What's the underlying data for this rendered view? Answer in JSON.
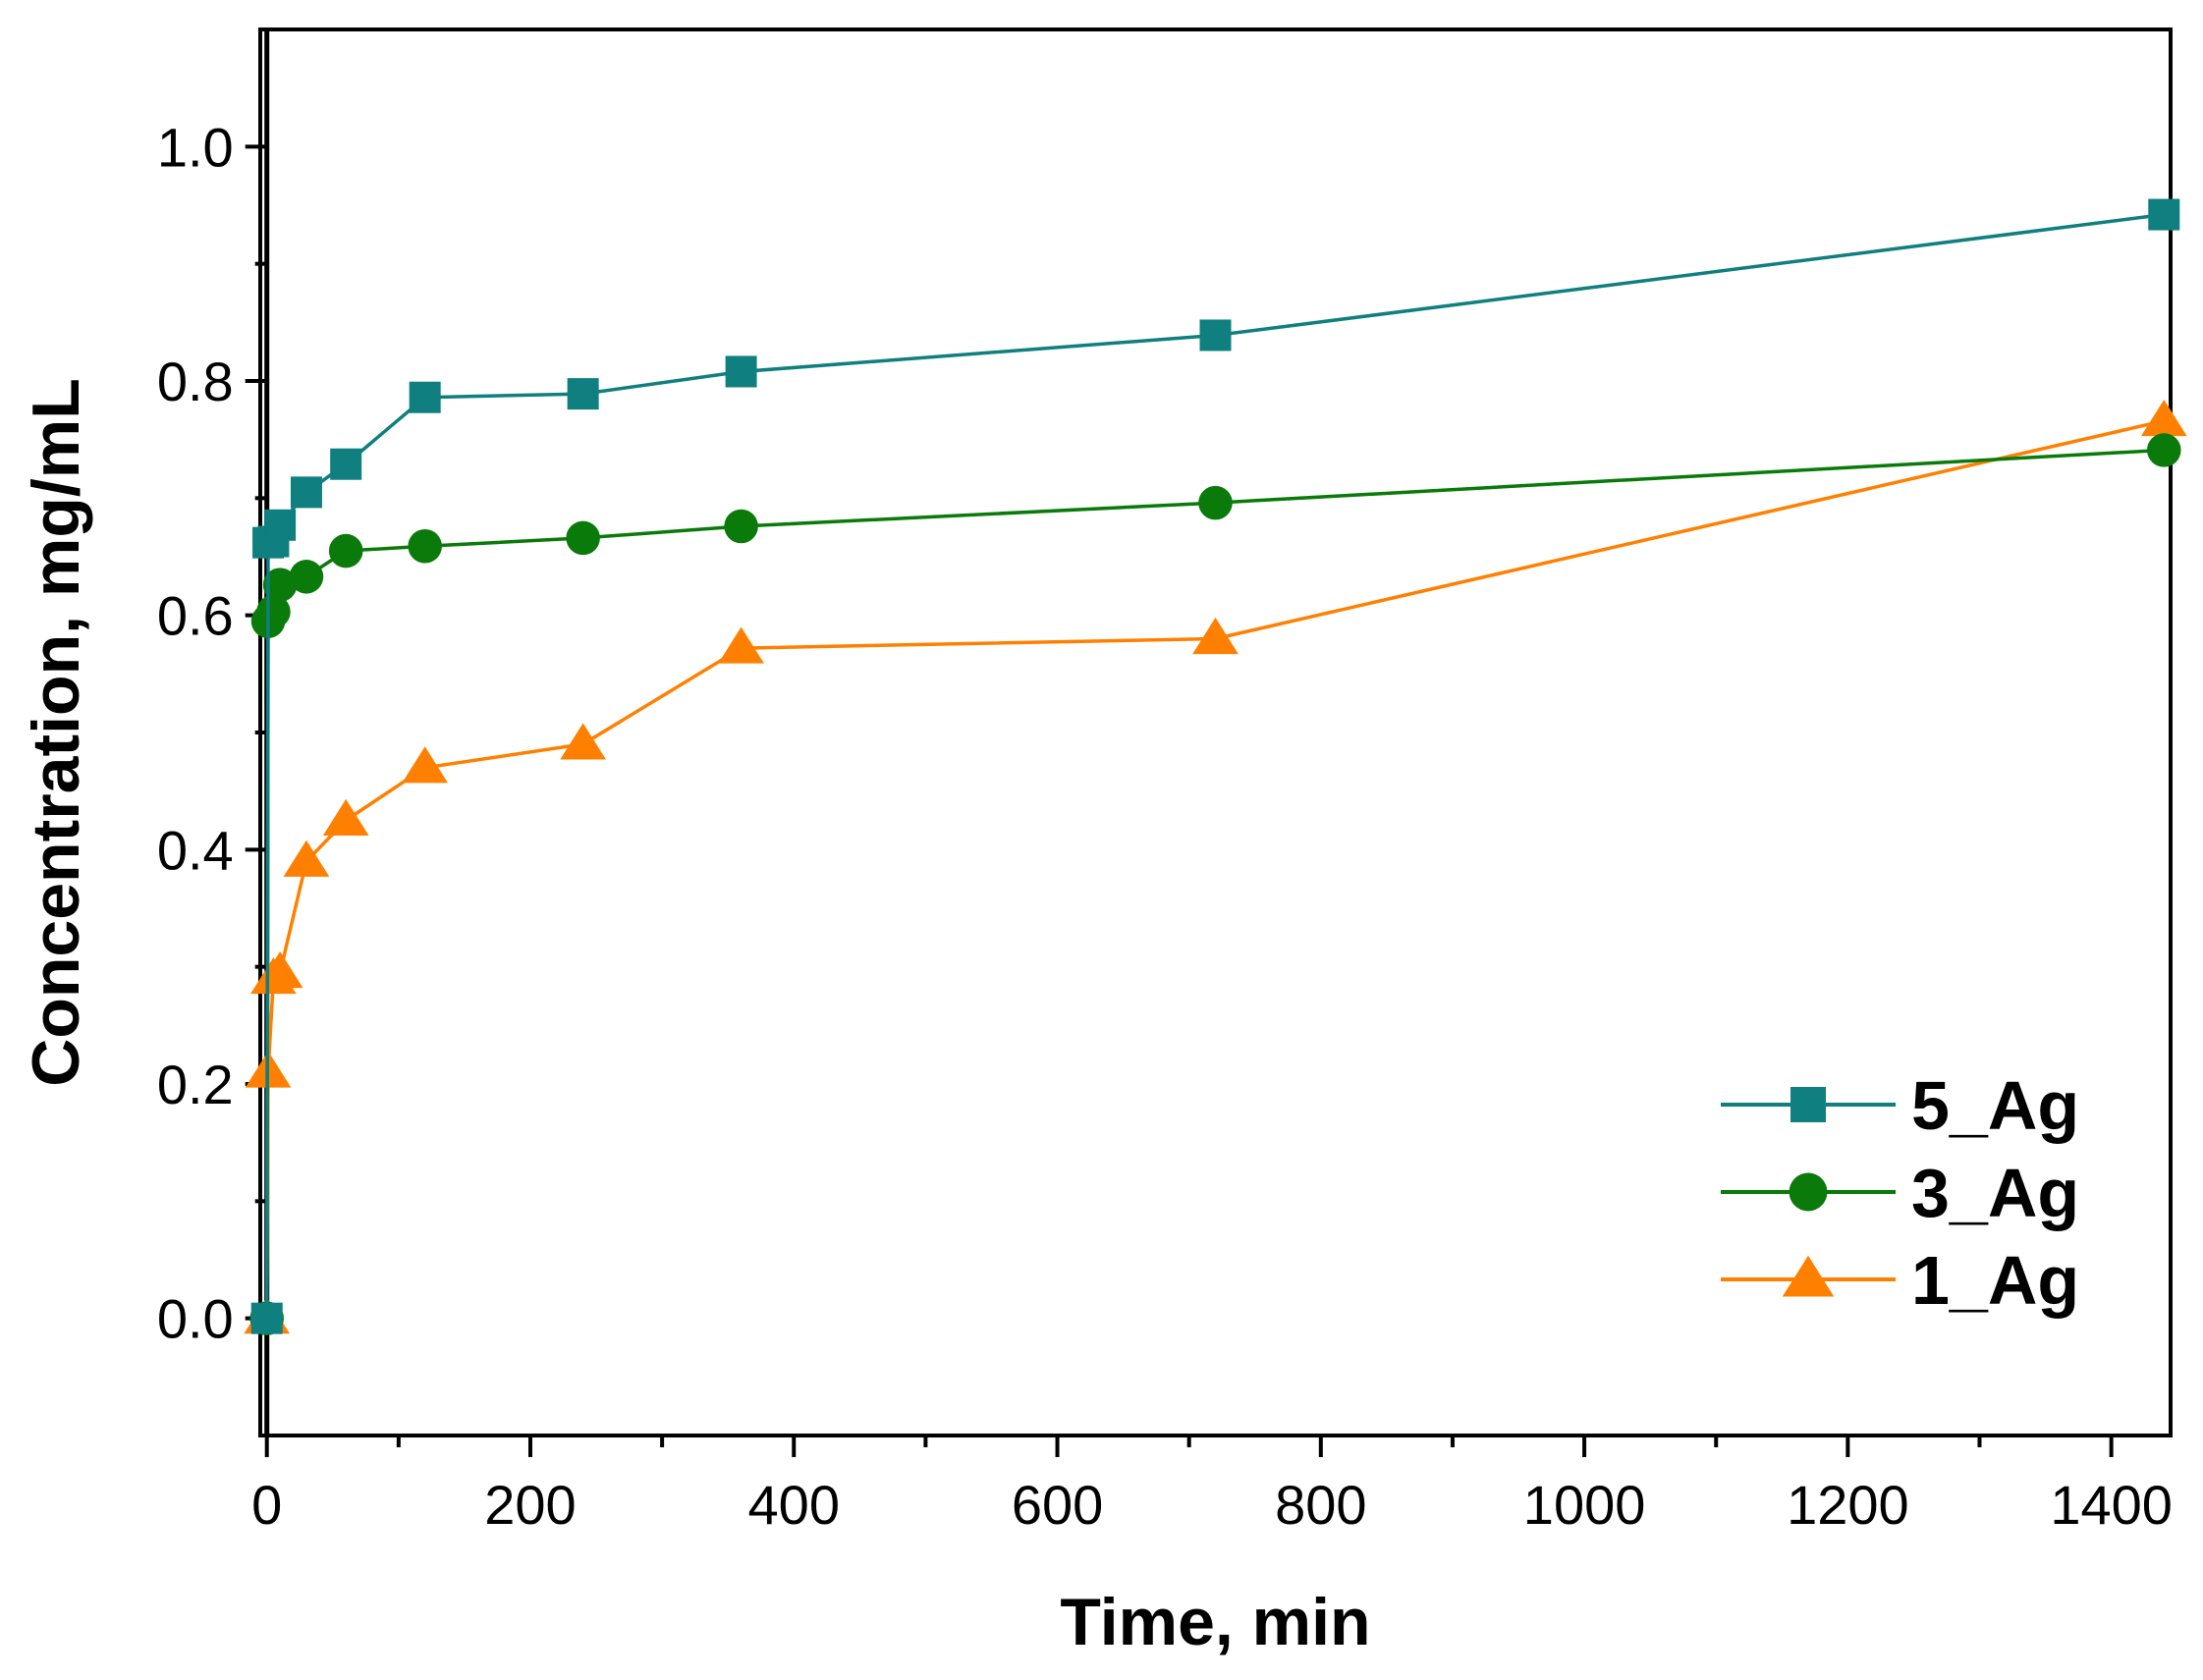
{
  "chart_data": {
    "type": "line",
    "title": "",
    "xlabel": "Time, min",
    "ylabel": "Concentration, mg/mL",
    "xlim": [
      -5,
      1445
    ],
    "ylim": [
      -0.1,
      1.1
    ],
    "x_ticks": [
      0,
      200,
      400,
      600,
      800,
      1000,
      1200,
      1400
    ],
    "x_tick_labels": [
      "0",
      "200",
      "400",
      "600",
      "800",
      "1000",
      "1200",
      "1400"
    ],
    "x_minor_ticks": [
      100,
      300,
      500,
      700,
      900,
      1100,
      1300
    ],
    "y_ticks": [
      0.0,
      0.2,
      0.4,
      0.6,
      0.8,
      1.0
    ],
    "y_tick_labels": [
      "0.0",
      "0.2",
      "0.4",
      "0.6",
      "0.8",
      "1.0"
    ],
    "y_minor_ticks": [
      0.1,
      0.3,
      0.5,
      0.7,
      0.9
    ],
    "grid": false,
    "legend_position": "bottom-right",
    "series": [
      {
        "name": "5_Ag",
        "color": "#0F7F7F",
        "marker": "square",
        "x": [
          0,
          1,
          5,
          10,
          30,
          60,
          120,
          240,
          360,
          720,
          1440
        ],
        "values": [
          0,
          0.662,
          0.663,
          0.677,
          0.705,
          0.729,
          0.786,
          0.789,
          0.808,
          0.839,
          0.942
        ]
      },
      {
        "name": "3_Ag",
        "color": "#0A7A0A",
        "marker": "circle",
        "x": [
          0,
          1,
          5,
          10,
          30,
          60,
          120,
          240,
          360,
          720,
          1440
        ],
        "values": [
          0,
          0.595,
          0.603,
          0.626,
          0.633,
          0.655,
          0.659,
          0.666,
          0.676,
          0.696,
          0.741
        ]
      },
      {
        "name": "1_Ag",
        "color": "#FF8000",
        "marker": "triangle",
        "x": [
          0,
          1,
          5,
          10,
          30,
          60,
          120,
          240,
          360,
          720,
          1440
        ],
        "values": [
          0,
          0.21,
          0.29,
          0.295,
          0.39,
          0.425,
          0.47,
          0.49,
          0.572,
          0.58,
          0.766
        ]
      }
    ]
  }
}
